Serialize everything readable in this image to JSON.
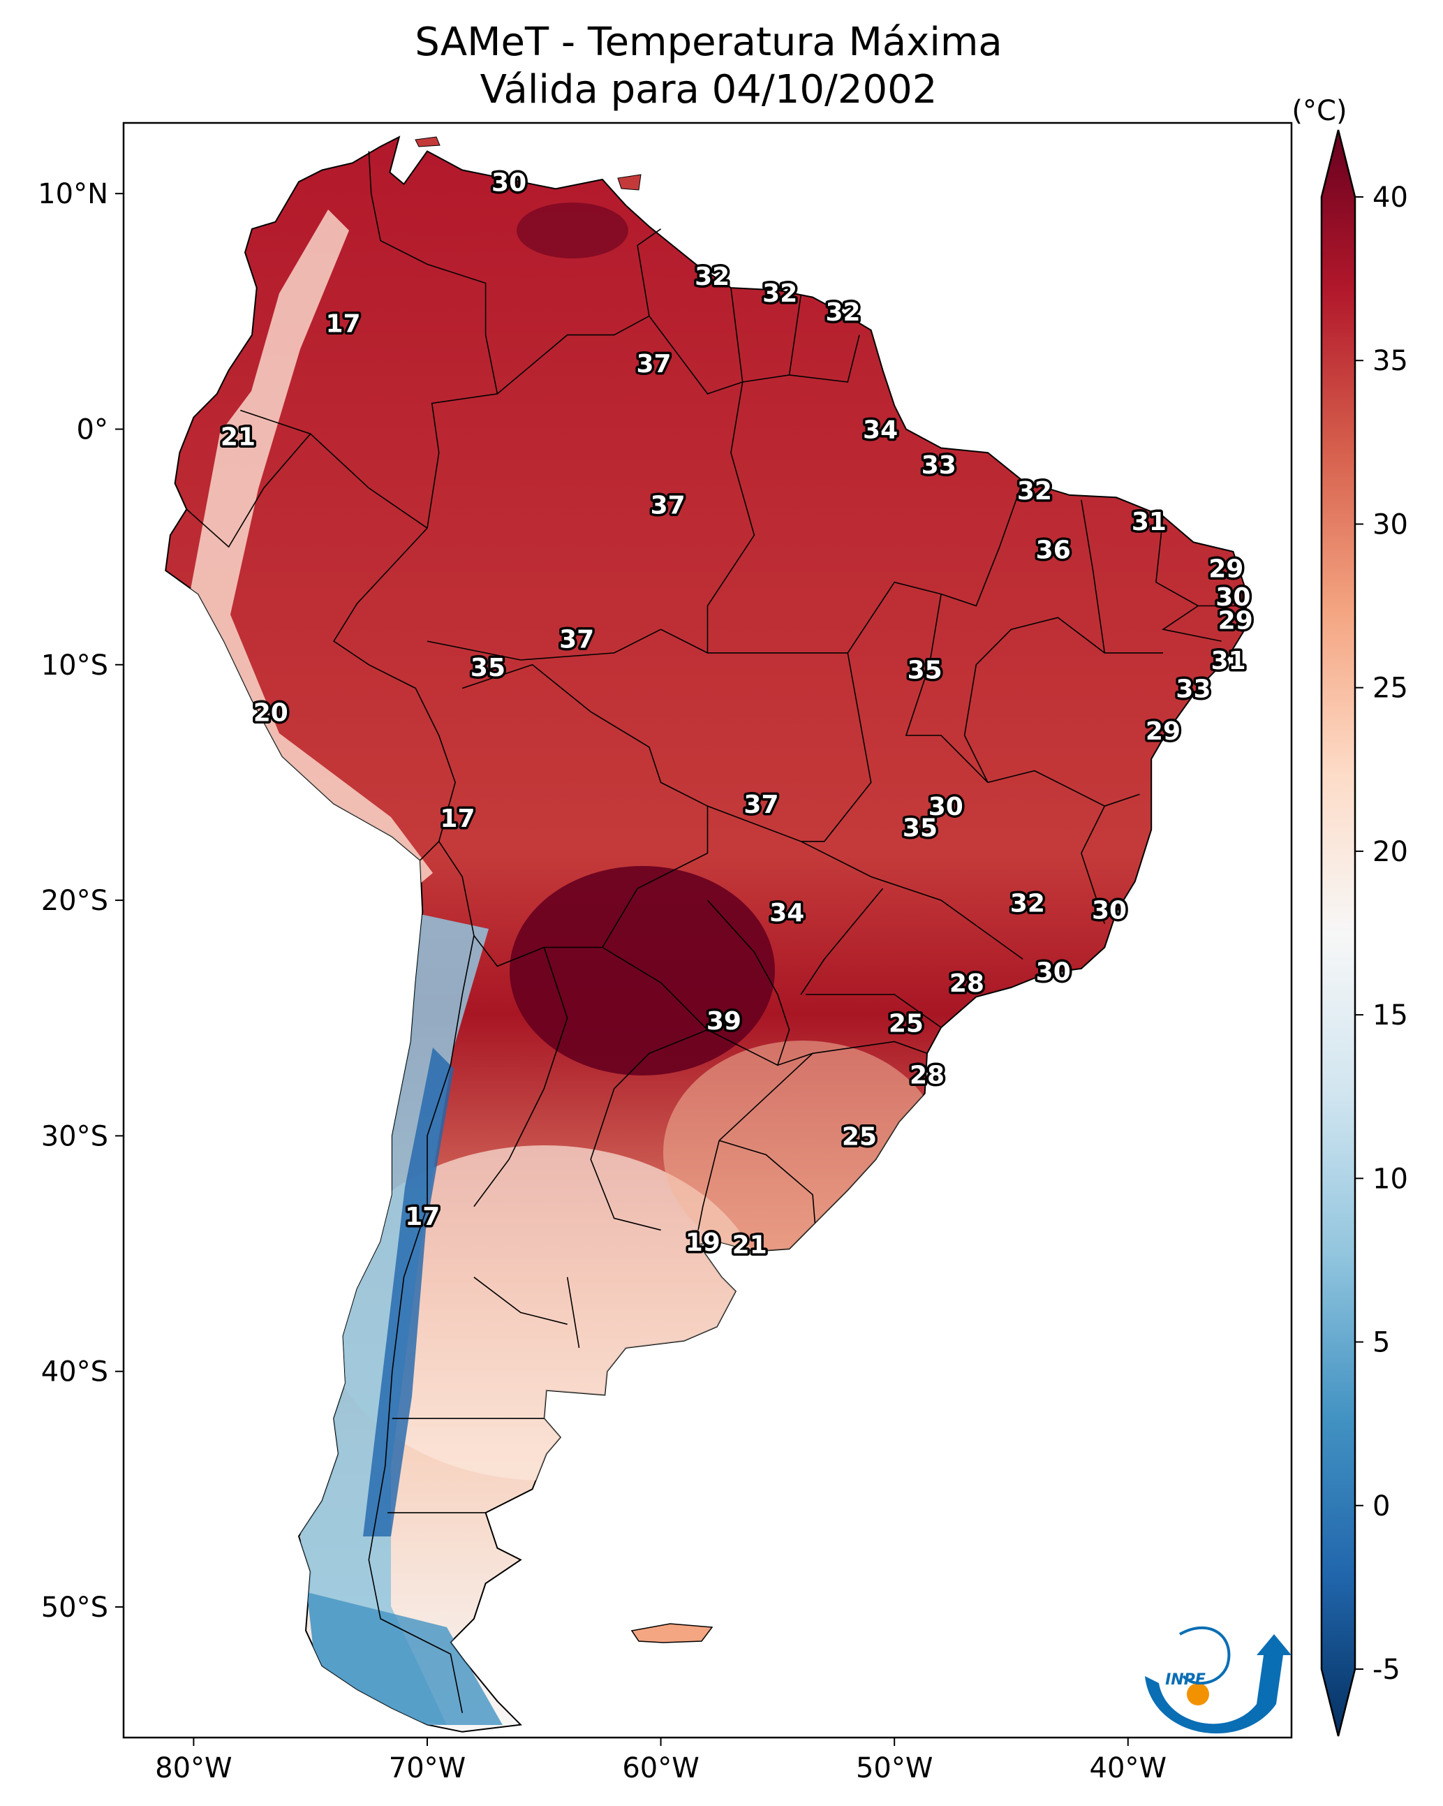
{
  "title": {
    "line1": "SAMeT - Temperatura Máxima",
    "line2": "Válida para 04/10/2002"
  },
  "map": {
    "lon_ticks": [
      "80°W",
      "70°W",
      "60°W",
      "50°W",
      "40°W"
    ],
    "lat_ticks": [
      "10°N",
      "0°",
      "10°S",
      "20°S",
      "30°S",
      "40°S",
      "50°S"
    ],
    "contour_labels": [
      {
        "text": "30",
        "lon": -66.5,
        "lat": 10.5
      },
      {
        "text": "17",
        "lon": -73.6,
        "lat": 4.5
      },
      {
        "text": "32",
        "lon": -57.8,
        "lat": 6.5
      },
      {
        "text": "32",
        "lon": -54.9,
        "lat": 5.8
      },
      {
        "text": "32",
        "lon": -52.2,
        "lat": 5.0
      },
      {
        "text": "37",
        "lon": -60.3,
        "lat": 2.8
      },
      {
        "text": "21",
        "lon": -78.1,
        "lat": -0.3
      },
      {
        "text": "34",
        "lon": -50.6,
        "lat": 0.0
      },
      {
        "text": "33",
        "lon": -48.1,
        "lat": -1.5
      },
      {
        "text": "32",
        "lon": -44.0,
        "lat": -2.6
      },
      {
        "text": "37",
        "lon": -59.7,
        "lat": -3.2
      },
      {
        "text": "31",
        "lon": -39.1,
        "lat": -3.9
      },
      {
        "text": "36",
        "lon": -43.2,
        "lat": -5.1
      },
      {
        "text": "29",
        "lon": -35.8,
        "lat": -5.9
      },
      {
        "text": "30",
        "lon": -35.5,
        "lat": -7.1
      },
      {
        "text": "29",
        "lon": -35.4,
        "lat": -8.1
      },
      {
        "text": "37",
        "lon": -63.6,
        "lat": -8.9
      },
      {
        "text": "35",
        "lon": -67.4,
        "lat": -10.1
      },
      {
        "text": "35",
        "lon": -48.7,
        "lat": -10.2
      },
      {
        "text": "31",
        "lon": -35.7,
        "lat": -9.8
      },
      {
        "text": "33",
        "lon": -37.2,
        "lat": -11.0
      },
      {
        "text": "20",
        "lon": -76.7,
        "lat": -12.0
      },
      {
        "text": "29",
        "lon": -38.5,
        "lat": -12.8
      },
      {
        "text": "37",
        "lon": -55.7,
        "lat": -15.9
      },
      {
        "text": "30",
        "lon": -47.8,
        "lat": -16.0
      },
      {
        "text": "35",
        "lon": -48.9,
        "lat": -16.9
      },
      {
        "text": "17",
        "lon": -68.7,
        "lat": -16.5
      },
      {
        "text": "32",
        "lon": -44.3,
        "lat": -20.1
      },
      {
        "text": "30",
        "lon": -40.8,
        "lat": -20.4
      },
      {
        "text": "34",
        "lon": -54.6,
        "lat": -20.5
      },
      {
        "text": "30",
        "lon": -43.2,
        "lat": -23.0
      },
      {
        "text": "28",
        "lon": -46.9,
        "lat": -23.5
      },
      {
        "text": "39",
        "lon": -57.3,
        "lat": -25.1
      },
      {
        "text": "25",
        "lon": -49.5,
        "lat": -25.2
      },
      {
        "text": "28",
        "lon": -48.6,
        "lat": -27.4
      },
      {
        "text": "25",
        "lon": -51.5,
        "lat": -30.0
      },
      {
        "text": "17",
        "lon": -70.2,
        "lat": -33.4
      },
      {
        "text": "19",
        "lon": -58.2,
        "lat": -34.5
      },
      {
        "text": "21",
        "lon": -56.2,
        "lat": -34.6
      }
    ]
  },
  "colorbar": {
    "unit": "(°C)",
    "min": -5,
    "max": 40,
    "ticks": [
      "40",
      "35",
      "30",
      "25",
      "20",
      "15",
      "10",
      "5",
      "0",
      "-5"
    ],
    "tick_values": [
      40,
      35,
      30,
      25,
      20,
      15,
      10,
      5,
      0,
      -5
    ],
    "colors": [
      "#053061",
      "#2166ac",
      "#4393c3",
      "#92c5de",
      "#d1e5f0",
      "#f7f7f7",
      "#fddbc7",
      "#f4a582",
      "#d6604d",
      "#b2182b",
      "#67001f"
    ]
  },
  "logo": {
    "text": "INPE",
    "colors": {
      "blue": "#0a6eb4",
      "orange": "#f39200"
    }
  }
}
